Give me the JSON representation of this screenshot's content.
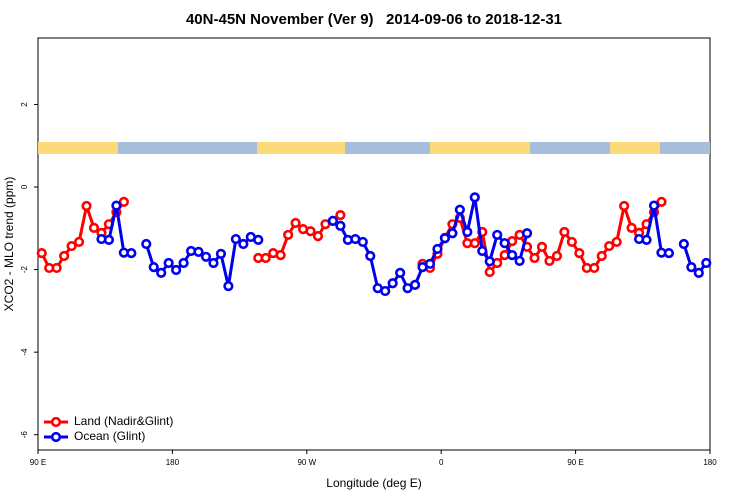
{
  "chart_data": {
    "type": "line",
    "title": "40N-45N November (Ver 9)   2014-09-06 to 2018-12-31",
    "x_label": "Longitude (deg E)",
    "y_label": "XCO2 - MLO trend (ppm)",
    "xlim": [
      90,
      540
    ],
    "ylim": [
      -6.37,
      3.61
    ],
    "xticks": [
      {
        "value": 90,
        "label": "90 E"
      },
      {
        "value": 180,
        "label": "180"
      },
      {
        "value": 270,
        "label": "90 W"
      },
      {
        "value": 360,
        "label": "0"
      },
      {
        "value": 450,
        "label": "90 E"
      },
      {
        "value": 540,
        "label": "180"
      }
    ],
    "yticks": [
      -6,
      -4,
      -2,
      0,
      2
    ],
    "legend": "bottom-left",
    "series": [
      {
        "name": "Land (Nadir&Glint)",
        "color": "#ff0000",
        "x": [
          92.5,
          97.5,
          102.5,
          107.5,
          112.5,
          117.5,
          122.5,
          127.5,
          132.5,
          137.5,
          142.5,
          147.5,
          190,
          237.5,
          242.5,
          247.5,
          252.5,
          257.5,
          262.5,
          267.5,
          272.5,
          277.5,
          282.5,
          287.5,
          292.5,
          320,
          347.5,
          352.5,
          357.5,
          362.5,
          367.5,
          372.5,
          377.5,
          382.5,
          387.5,
          392.5,
          397.5,
          402.5,
          407.5,
          412.5,
          417.5,
          422.5,
          427.5,
          432.5,
          437.5,
          442.5,
          447.5,
          452.5,
          457.5,
          462.5,
          467.5,
          472.5,
          477.5,
          482.5,
          487.5,
          492.5,
          497.5,
          502.5,
          507.5
        ],
        "values": [
          -1.6,
          -1.96,
          -1.96,
          -1.67,
          -1.43,
          -1.33,
          -0.46,
          -0.99,
          -1.11,
          -0.9,
          -0.61,
          -0.36,
          null,
          -1.72,
          -1.72,
          -1.6,
          -1.65,
          -1.16,
          -0.87,
          -1.02,
          -1.07,
          -1.19,
          -0.9,
          -0.82,
          -0.68,
          null,
          -1.86,
          -1.96,
          -1.62,
          -1.23,
          -0.9,
          -0.75,
          -1.36,
          -1.36,
          -1.09,
          -2.06,
          -1.84,
          -1.65,
          -1.31,
          -1.16,
          -1.45,
          -1.72,
          -1.45,
          -1.79,
          -1.67,
          -1.09,
          -1.33,
          -1.6,
          -1.96,
          -1.96,
          -1.67,
          -1.43,
          -1.33,
          -0.46,
          -0.99,
          -1.11,
          -0.9,
          -0.61,
          -0.36
        ]
      },
      {
        "name": "Ocean (Glint)",
        "color": "#0000ee",
        "x": [
          132.5,
          137.5,
          142.5,
          147.5,
          152.5,
          155,
          162.5,
          167.5,
          172.5,
          177.5,
          182.5,
          187.5,
          192.5,
          197.5,
          202.5,
          207.5,
          212.5,
          217.5,
          222.5,
          227.5,
          232.5,
          237.5,
          265,
          287.5,
          292.5,
          297.5,
          302.5,
          307.5,
          312.5,
          317.5,
          322.5,
          327.5,
          332.5,
          337.5,
          342.5,
          347.5,
          352.5,
          357.5,
          362.5,
          367.5,
          372.5,
          377.5,
          382.5,
          387.5,
          392.5,
          397.5,
          402.5,
          407.5,
          412.5,
          417.5,
          440,
          492.5,
          497.5,
          502.5,
          507.5,
          512.5,
          517.5,
          522.5,
          527.5,
          532.5,
          537.5
        ],
        "values": [
          -1.26,
          -1.28,
          -0.45,
          -1.59,
          -1.6,
          null,
          -1.38,
          -1.94,
          -2.08,
          -1.84,
          -2.01,
          -1.84,
          -1.55,
          -1.57,
          -1.69,
          -1.84,
          -1.62,
          -2.4,
          -1.26,
          -1.38,
          -1.21,
          -1.28,
          null,
          -0.82,
          -0.94,
          -1.28,
          -1.26,
          -1.33,
          -1.67,
          -2.45,
          -2.52,
          -2.33,
          -2.08,
          -2.45,
          -2.37,
          -1.94,
          -1.86,
          -1.5,
          -1.24,
          -1.12,
          -0.55,
          -1.09,
          -0.25,
          -1.55,
          -1.8,
          -1.16,
          -1.36,
          -1.65,
          -1.79,
          -1.12,
          null,
          -1.26,
          -1.28,
          -0.45,
          -1.59,
          -1.6,
          null,
          -1.38,
          -1.94,
          -2.08,
          -1.84
        ]
      }
    ]
  }
}
